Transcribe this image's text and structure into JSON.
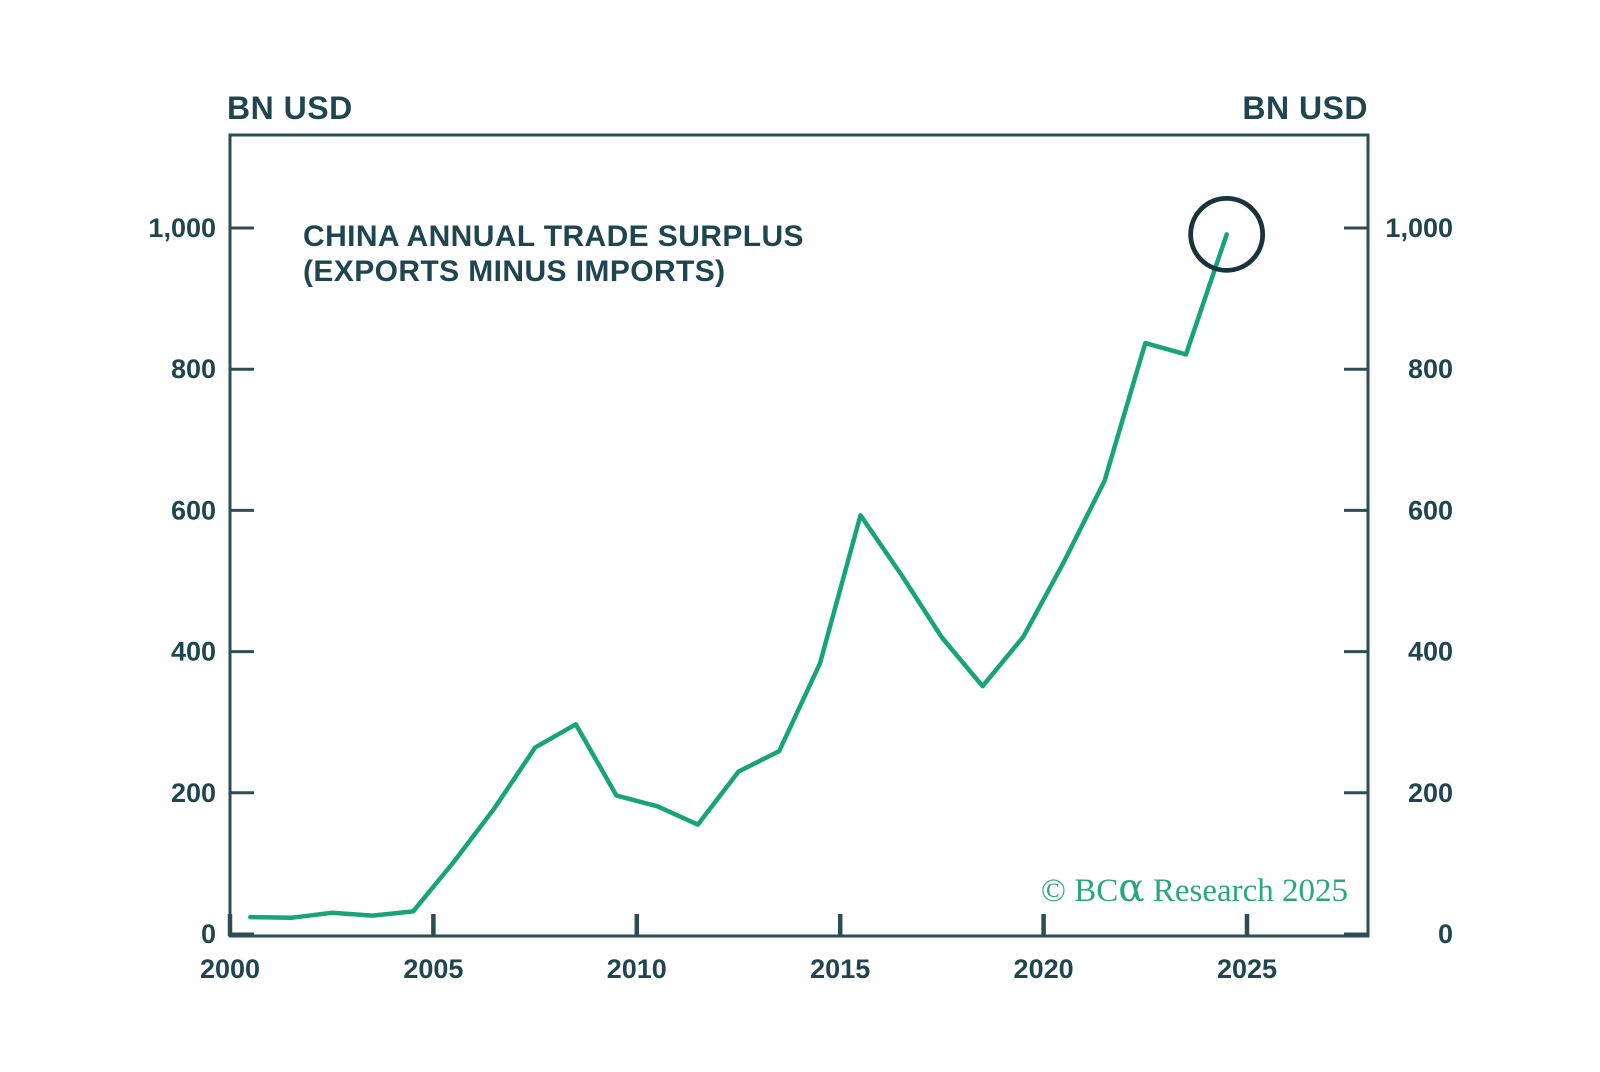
{
  "page": {
    "background": "#FFFFFF"
  },
  "chart_data": {
    "type": "line",
    "title_line1": "CHINA ANNUAL TRADE SURPLUS",
    "title_line2": "(EXPORTS MINUS IMPORTS)",
    "y_axis_unit_left": "BN USD",
    "y_axis_unit_right": "BN USD",
    "series": [
      {
        "name": "China annual trade surplus (exports minus imports)",
        "x": [
          2000,
          2001,
          2002,
          2003,
          2004,
          2005,
          2006,
          2007,
          2008,
          2009,
          2010,
          2011,
          2012,
          2013,
          2014,
          2015,
          2016,
          2017,
          2018,
          2019,
          2020,
          2021,
          2022,
          2023,
          2024
        ],
        "values": [
          24,
          23,
          30,
          26,
          32,
          102,
          178,
          264,
          297,
          196,
          181,
          155,
          230,
          259,
          383,
          593,
          509,
          420,
          351,
          421,
          527,
          642,
          837,
          821,
          991
        ]
      }
    ],
    "x_ticks": [
      {
        "value": 2000,
        "label": "2000"
      },
      {
        "value": 2005,
        "label": "2005"
      },
      {
        "value": 2010,
        "label": "2010"
      },
      {
        "value": 2015,
        "label": "2015"
      },
      {
        "value": 2020,
        "label": "2020"
      },
      {
        "value": 2025,
        "label": "2025"
      }
    ],
    "y_ticks": [
      {
        "value": 0,
        "label": "0"
      },
      {
        "value": 200,
        "label": "200"
      },
      {
        "value": 400,
        "label": "400"
      },
      {
        "value": 600,
        "label": "600"
      },
      {
        "value": 800,
        "label": "800"
      },
      {
        "value": 1000,
        "label": "1,000"
      }
    ],
    "xlim": [
      2000,
      2027.98
    ],
    "ylim": [
      0,
      1130
    ],
    "grid": false,
    "legend_position": "none",
    "point_x_offset_years": 0.5,
    "annotation_circle": {
      "x_year": 2024.5,
      "value": 991
    },
    "colors": {
      "line": "#17A478",
      "axis": "#2C4D55",
      "text": "#1F4650",
      "annotation_circle": "#18333E",
      "watermark": "#2AA87D",
      "background": "#FFFFFF"
    }
  },
  "watermark": {
    "copyright": "© ",
    "brand": "BC",
    "brand_alpha": "α",
    "rest": " Research 2025"
  }
}
